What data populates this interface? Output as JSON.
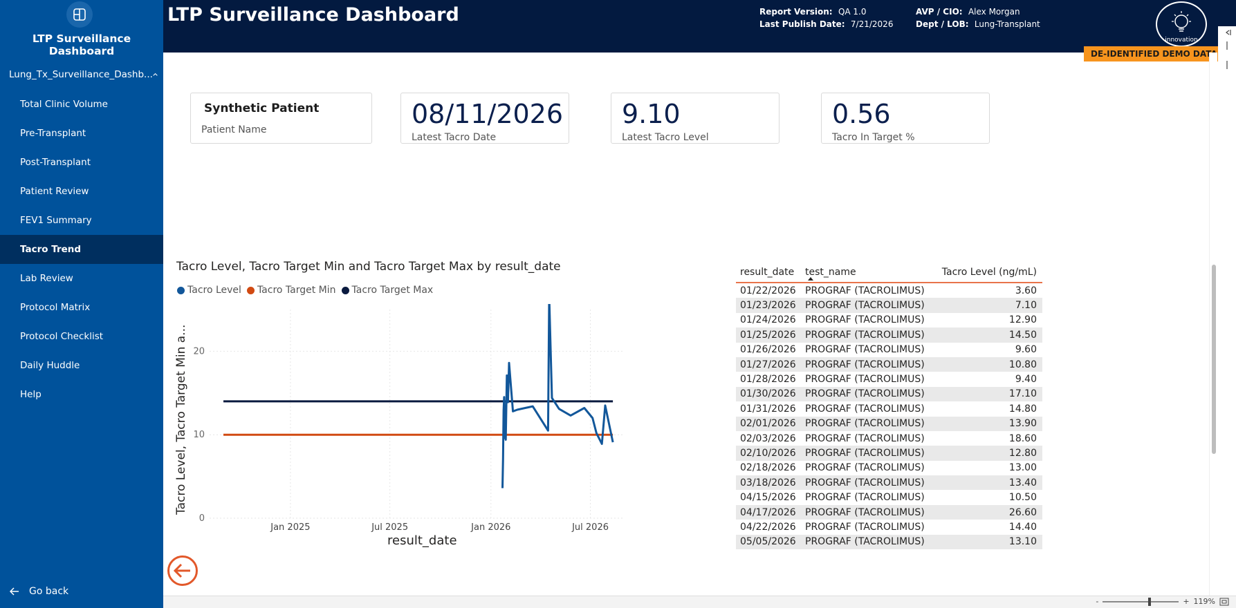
{
  "sidebar": {
    "app_title": "LTP Surveillance Dashboard",
    "report_group": "Lung_Tx_Surveillance_Dashb...",
    "items": [
      {
        "label": "Total Clinic Volume",
        "active": false
      },
      {
        "label": "Pre-Transplant",
        "active": false
      },
      {
        "label": "Post-Transplant",
        "active": false
      },
      {
        "label": "Patient Review",
        "active": false
      },
      {
        "label": "FEV1 Summary",
        "active": false
      },
      {
        "label": "Tacro Trend",
        "active": true
      },
      {
        "label": "Lab Review",
        "active": false
      },
      {
        "label": "Protocol Matrix",
        "active": false
      },
      {
        "label": "Protocol Checklist",
        "active": false
      },
      {
        "label": "Daily Huddle",
        "active": false
      },
      {
        "label": "Help",
        "active": false
      }
    ],
    "go_back": "Go back"
  },
  "header": {
    "title": "LTP Surveillance Dashboard",
    "report_version_label": "Report Version:",
    "report_version": "QA 1.0",
    "publish_label": "Last Publish Date:",
    "publish_date": "7/21/2026",
    "avp_label": "AVP / CIO:",
    "avp": "Alex Morgan",
    "dept_label": "Dept / LOB:",
    "dept": "Lung-Transplant",
    "innovation_label": "innovation",
    "demo_badge": "DE-IDENTIFIED DEMO DATA"
  },
  "cards": {
    "patient_name": "Synthetic Patient",
    "patient_name_label": "Patient Name",
    "latest_date": "08/11/2026",
    "latest_date_label": "Latest Tacro Date",
    "latest_level": "9.10",
    "latest_level_label": "Latest Tacro Level",
    "in_target": "0.56",
    "in_target_label": "Tacro In Target %"
  },
  "chart_data": {
    "type": "line",
    "title": "Tacro Level, Tacro Target Min and Tacro Target Max by result_date",
    "xlabel": "result_date",
    "ylabel": "Tacro Level, Tacro Target Min a...",
    "ylim": [
      0,
      25
    ],
    "x_ticks": [
      "Jan 2025",
      "Jul 2025",
      "Jan 2026",
      "Jul 2026"
    ],
    "y_ticks": [
      0,
      10,
      20
    ],
    "legend_position": "top-left",
    "grid": true,
    "series": [
      {
        "name": "Tacro Level",
        "color": "#12579a",
        "points": [
          [
            "2026-01-22",
            3.6
          ],
          [
            "2026-01-23",
            7.1
          ],
          [
            "2026-01-24",
            12.9
          ],
          [
            "2026-01-25",
            14.5
          ],
          [
            "2026-01-26",
            9.6
          ],
          [
            "2026-01-27",
            10.8
          ],
          [
            "2026-01-28",
            9.4
          ],
          [
            "2026-01-30",
            17.1
          ],
          [
            "2026-01-31",
            14.8
          ],
          [
            "2026-02-01",
            13.9
          ],
          [
            "2026-02-03",
            18.6
          ],
          [
            "2026-02-10",
            12.8
          ],
          [
            "2026-02-18",
            13.0
          ],
          [
            "2026-03-18",
            13.4
          ],
          [
            "2026-04-15",
            10.5
          ],
          [
            "2026-04-17",
            26.6
          ],
          [
            "2026-04-22",
            14.4
          ],
          [
            "2026-05-05",
            13.1
          ],
          [
            "2026-05-26",
            12.3
          ],
          [
            "2026-06-20",
            13.2
          ],
          [
            "2026-07-05",
            12.0
          ],
          [
            "2026-07-12",
            10.2
          ],
          [
            "2026-07-22",
            8.9
          ],
          [
            "2026-07-28",
            13.5
          ],
          [
            "2026-08-11",
            9.1
          ]
        ]
      },
      {
        "name": "Tacro Target Min",
        "color": "#d14a12",
        "points": [
          [
            "2024-09-01",
            10
          ],
          [
            "2026-08-11",
            10
          ]
        ]
      },
      {
        "name": "Tacro Target Max",
        "color": "#0a1a3f",
        "points": [
          [
            "2024-09-01",
            14
          ],
          [
            "2026-08-11",
            14
          ]
        ]
      }
    ]
  },
  "table": {
    "headers": [
      "result_date",
      "test_name",
      "Tacro Level (ng/mL)"
    ],
    "rows": [
      [
        "01/22/2026",
        "PROGRAF (TACROLIMUS)",
        "3.60"
      ],
      [
        "01/23/2026",
        "PROGRAF (TACROLIMUS)",
        "7.10"
      ],
      [
        "01/24/2026",
        "PROGRAF (TACROLIMUS)",
        "12.90"
      ],
      [
        "01/25/2026",
        "PROGRAF (TACROLIMUS)",
        "14.50"
      ],
      [
        "01/26/2026",
        "PROGRAF (TACROLIMUS)",
        "9.60"
      ],
      [
        "01/27/2026",
        "PROGRAF (TACROLIMUS)",
        "10.80"
      ],
      [
        "01/28/2026",
        "PROGRAF (TACROLIMUS)",
        "9.40"
      ],
      [
        "01/30/2026",
        "PROGRAF (TACROLIMUS)",
        "17.10"
      ],
      [
        "01/31/2026",
        "PROGRAF (TACROLIMUS)",
        "14.80"
      ],
      [
        "02/01/2026",
        "PROGRAF (TACROLIMUS)",
        "13.90"
      ],
      [
        "02/03/2026",
        "PROGRAF (TACROLIMUS)",
        "18.60"
      ],
      [
        "02/10/2026",
        "PROGRAF (TACROLIMUS)",
        "12.80"
      ],
      [
        "02/18/2026",
        "PROGRAF (TACROLIMUS)",
        "13.00"
      ],
      [
        "03/18/2026",
        "PROGRAF (TACROLIMUS)",
        "13.40"
      ],
      [
        "04/15/2026",
        "PROGRAF (TACROLIMUS)",
        "10.50"
      ],
      [
        "04/17/2026",
        "PROGRAF (TACROLIMUS)",
        "26.60"
      ],
      [
        "04/22/2026",
        "PROGRAF (TACROLIMUS)",
        "14.40"
      ],
      [
        "05/05/2026",
        "PROGRAF (TACROLIMUS)",
        "13.10"
      ]
    ]
  },
  "footer": {
    "zoom_minus": "-",
    "zoom_plus": "+",
    "zoom_level": "119%"
  }
}
